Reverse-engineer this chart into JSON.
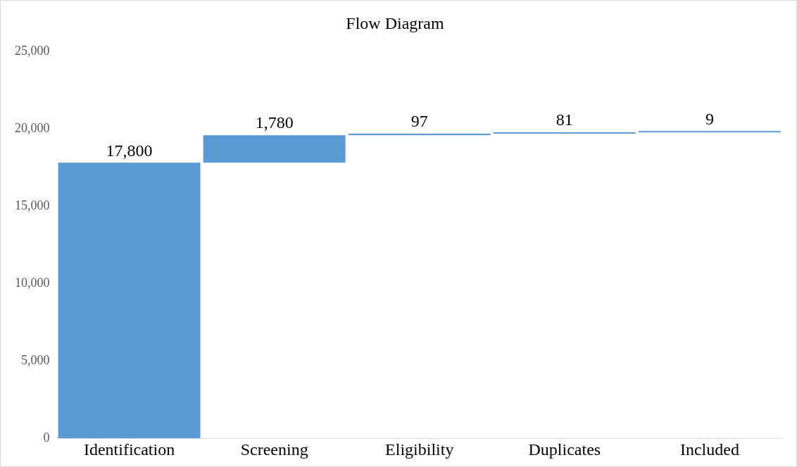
{
  "chart_data": {
    "type": "bar",
    "title": "Flow Diagram",
    "categories": [
      "Identification",
      "Screening",
      "Eligibility",
      "Duplicates",
      "Included"
    ],
    "values": [
      17800,
      1780,
      97,
      81,
      9
    ],
    "base": [
      0,
      17800,
      19580,
      19677,
      19758
    ],
    "value_labels": [
      "17,800",
      "1,780",
      "97",
      "81",
      "9"
    ],
    "color": "#5b9bd5",
    "ylim": [
      0,
      25000
    ],
    "yticks": [
      {
        "value": 0,
        "label": "0"
      },
      {
        "value": 5000,
        "label": "5,000"
      },
      {
        "value": 10000,
        "label": "10,000"
      },
      {
        "value": 15000,
        "label": "15,000"
      },
      {
        "value": 20000,
        "label": "20,000"
      },
      {
        "value": 25000,
        "label": "25,000"
      }
    ],
    "grid": false,
    "legend": false
  }
}
